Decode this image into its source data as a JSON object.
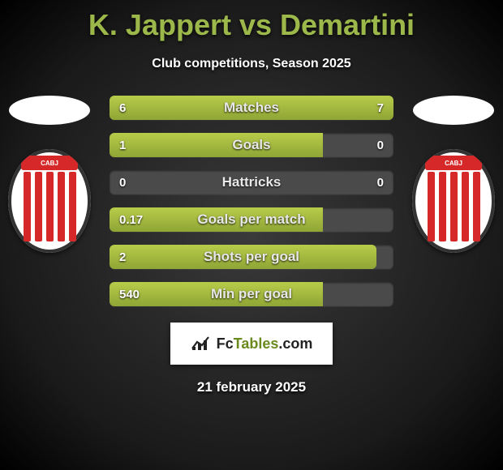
{
  "title": "K. Jappert vs Demartini",
  "subtitle": "Club competitions, Season 2025",
  "date": "21 february 2025",
  "logo": {
    "brand_a": "Fc",
    "brand_b": "Tables",
    "brand_c": ".com"
  },
  "colors": {
    "accent": "#9db84a",
    "bar_fill": "#a5bc3f",
    "bar_bg": "#4a4a4a",
    "badge_red": "#d62828",
    "page_bg_center": "#3a3a3a",
    "page_bg_edge": "#000000",
    "text": "#ffffff"
  },
  "bars": [
    {
      "label": "Matches",
      "left": "6",
      "right": "7",
      "left_pct": 46,
      "right_pct": 54
    },
    {
      "label": "Goals",
      "left": "1",
      "right": "0",
      "left_pct": 75,
      "right_pct": 0
    },
    {
      "label": "Hattricks",
      "left": "0",
      "right": "0",
      "left_pct": 0,
      "right_pct": 0
    },
    {
      "label": "Goals per match",
      "left": "0.17",
      "right": "",
      "left_pct": 75,
      "right_pct": 0
    },
    {
      "label": "Shots per goal",
      "left": "2",
      "right": "",
      "left_pct": 94,
      "right_pct": 0
    },
    {
      "label": "Min per goal",
      "left": "540",
      "right": "",
      "left_pct": 75,
      "right_pct": 0
    }
  ],
  "badge_label": "CABJ"
}
